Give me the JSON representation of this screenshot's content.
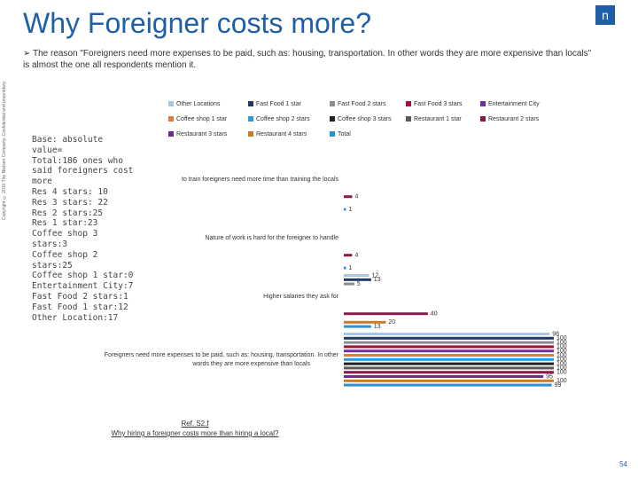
{
  "header": {
    "title": "Why Foreigner costs more?",
    "bullet": "The reason \"Foreigners need more expenses to be paid, such as: housing, transportation. In other words they are more expensive than locals\" is almost the one all respondents mention it.",
    "copyright": "Copyright © 2010 The Nielsen Company. Confidential and proprietary.",
    "logo": "n"
  },
  "notes": [
    "Base: absolute value=",
    "Total:186 ones who said foreigners cost more",
    "Res 4 stars: 10",
    "Res 3 stars: 22",
    "Res 2 stars:25",
    "Res 1 star:23",
    "Coffee shop 3 stars:3",
    "Coffee shop 2 stars:25",
    "Coffee shop 1 star:0",
    "Entertainment City:7",
    "Fast Food 2 stars:1",
    "Fast Food 1 star:12",
    "Other Location:17"
  ],
  "ref": [
    "Ref. S2.f",
    "Why hiring a foreigner costs more than hiring a local?"
  ],
  "page_number": "54",
  "chart_data": {
    "type": "bar",
    "orientation": "horizontal",
    "xlim": [
      0,
      100
    ],
    "categories": [
      "to train foreigners need more time than training the locals",
      "Nature of work is hard for the foreigner to handle",
      "Higher salaries they ask for",
      "Foreigners need more expenses to be paid, such as: housing, transportation. In other words they are more expensive than locals"
    ],
    "series": [
      {
        "name": "Other Locations",
        "color": "#a8c8e0",
        "values": [
          null,
          null,
          12,
          98
        ]
      },
      {
        "name": "Fast Food 1 star",
        "color": "#1f3864",
        "values": [
          null,
          null,
          13,
          100
        ]
      },
      {
        "name": "Fast Food 2 stars",
        "color": "#8c8c8c",
        "values": [
          null,
          null,
          5,
          100
        ]
      },
      {
        "name": "Fast Food 3 stars",
        "color": "#a50f3c",
        "values": [
          null,
          null,
          null,
          100
        ]
      },
      {
        "name": "Entertainment City",
        "color": "#7030a0",
        "values": [
          null,
          null,
          null,
          100
        ]
      },
      {
        "name": "Coffee shop 1 star",
        "color": "#e07b39",
        "values": [
          null,
          null,
          null,
          100
        ]
      },
      {
        "name": "Coffee shop 2 stars",
        "color": "#2e9bd6",
        "values": [
          null,
          null,
          null,
          100
        ]
      },
      {
        "name": "Coffee shop 3 stars",
        "color": "#222222",
        "values": [
          null,
          null,
          null,
          100
        ]
      },
      {
        "name": "Restaurant 1 star",
        "color": "#595959",
        "values": [
          null,
          null,
          null,
          100
        ]
      },
      {
        "name": "Restaurant 2 stars",
        "color": "#8b1a4a",
        "values": [
          4,
          4,
          40,
          100
        ]
      },
      {
        "name": "Restaurant 3 stars",
        "color": "#6b2c91",
        "values": [
          null,
          null,
          null,
          95
        ]
      },
      {
        "name": "Restaurant 4 stars",
        "color": "#c97a2a",
        "values": [
          null,
          null,
          20,
          100
        ]
      },
      {
        "name": "Total",
        "color": "#2f8fd0",
        "values": [
          1,
          1,
          13,
          99
        ]
      }
    ]
  }
}
